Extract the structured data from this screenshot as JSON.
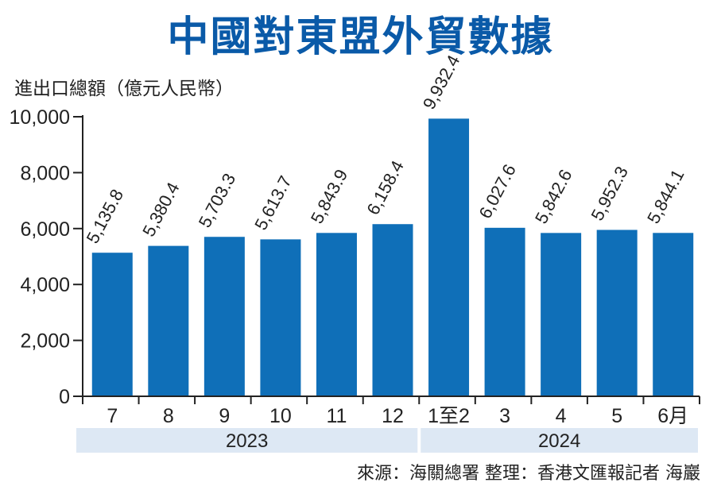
{
  "title": "中國對東盟外貿數據",
  "source": "來源：海關總署  整理：香港文匯報記者 海巖",
  "colors": {
    "bar": "#0f6fb8",
    "title": "#0a5aa8",
    "band": "#dde8f4"
  },
  "chart_data": {
    "type": "bar",
    "ylabel": "進出口總額（億元人民幣）",
    "ylim": [
      0,
      10000
    ],
    "yticks": [
      "0",
      "2,000",
      "4,000",
      "6,000",
      "8,000",
      "10,000"
    ],
    "categories": [
      "7",
      "8",
      "9",
      "10",
      "11",
      "12",
      "1至2",
      "3",
      "4",
      "5",
      "6月"
    ],
    "values": [
      5135.8,
      5380.4,
      5703.3,
      5613.7,
      5843.9,
      6158.4,
      9932.4,
      6027.6,
      5842.6,
      5952.3,
      5844.1
    ],
    "value_labels": [
      "5,135.8",
      "5,380.4",
      "5,703.3",
      "5,613.7",
      "5,843.9",
      "6,158.4",
      "9,932.4",
      "6,027.6",
      "5,842.6",
      "5,952.3",
      "5,844.1"
    ],
    "groups": [
      {
        "label": "2023",
        "count": 6
      },
      {
        "label": "2024",
        "count": 5
      }
    ]
  }
}
